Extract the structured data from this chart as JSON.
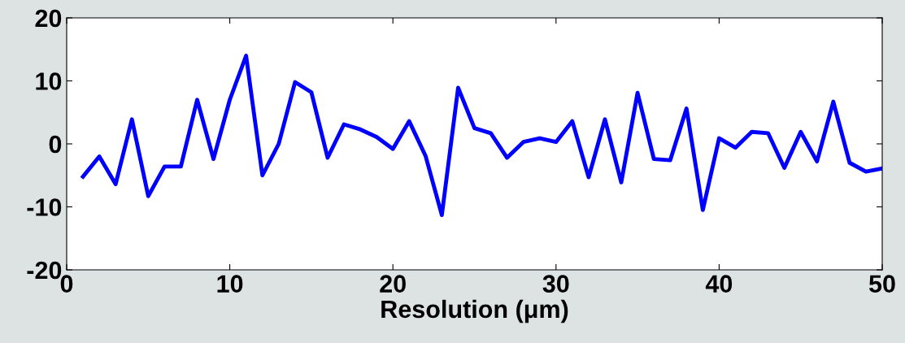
{
  "chart_data": {
    "type": "line",
    "xlabel": "Resolution (μm)",
    "x": [
      1,
      2,
      3,
      4,
      5,
      6,
      7,
      8,
      9,
      10,
      11,
      12,
      13,
      14,
      15,
      16,
      17,
      18,
      19,
      20,
      21,
      22,
      23,
      24,
      25,
      26,
      27,
      28,
      29,
      30,
      31,
      32,
      33,
      34,
      35,
      36,
      37,
      38,
      39,
      40,
      41,
      42,
      43,
      44,
      45,
      46,
      47,
      48,
      49,
      50
    ],
    "series": [
      {
        "color": "#0000ff",
        "values": [
          -5.2,
          -2,
          -6.4,
          3.9,
          -8.3,
          -3.6,
          -3.6,
          7,
          -2.4,
          7,
          14,
          -5,
          0,
          9.8,
          8.2,
          -2.2,
          3.1,
          2.3,
          1.1,
          -0.8,
          3.6,
          -1.9,
          -11.3,
          8.9,
          2.5,
          1.7,
          -2.2,
          0.3,
          0.9,
          0.3,
          3.6,
          -5.3,
          3.9,
          -6.1,
          8.1,
          -2.4,
          -2.6,
          5.6,
          -10.5,
          0.9,
          -0.6,
          1.9,
          1.7,
          -3.8,
          1.9,
          -2.8,
          6.7,
          -3,
          -4.4,
          -3.9
        ]
      }
    ],
    "xlim": [
      0,
      50
    ],
    "xticks": [
      0,
      10,
      20,
      30,
      40,
      50
    ],
    "ylim": [
      -20,
      20
    ],
    "yticks": [
      -20,
      -10,
      0,
      10,
      20
    ],
    "grid": false,
    "legend": false,
    "marker": "none",
    "line_style": "solid"
  }
}
